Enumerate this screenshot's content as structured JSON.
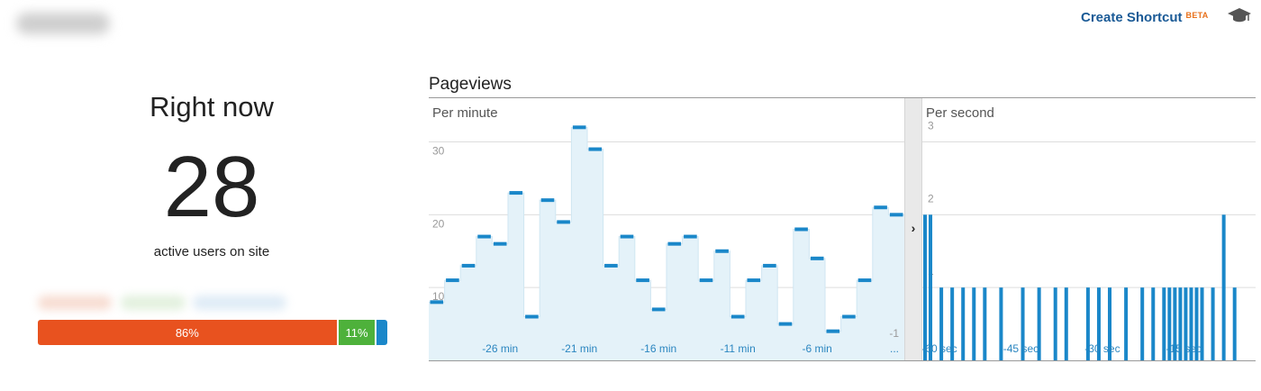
{
  "header": {
    "shortcut_label": "Create Shortcut",
    "beta_label": "BETA",
    "cap_icon": "graduation-cap-icon"
  },
  "right_now": {
    "title": "Right now",
    "count": "28",
    "subtitle": "active users on site"
  },
  "device_bar": {
    "segments": [
      {
        "label": "86%",
        "value": 86,
        "color": "#e8521f"
      },
      {
        "label": "11%",
        "value": 11,
        "color": "#4eb13b"
      },
      {
        "label": "",
        "value": 3,
        "color": "#1a87c9"
      }
    ]
  },
  "pageviews": {
    "title": "Pageviews",
    "divider_icon": "chevron-right-icon"
  },
  "chart_data": [
    {
      "type": "area",
      "title": "Per minute",
      "ylim": [
        0,
        36
      ],
      "y_ticks": [
        "10",
        "20",
        "30"
      ],
      "grid": true,
      "x_tick_labels": [
        "-26 min",
        "-21 min",
        "-16 min",
        "-11 min",
        "-6 min",
        "-1"
      ],
      "x_last_label": "...",
      "minutes_ago": [
        30,
        29,
        28,
        27,
        26,
        25,
        24,
        23,
        22,
        21,
        20,
        19,
        18,
        17,
        16,
        15,
        14,
        13,
        12,
        11,
        10,
        9,
        8,
        7,
        6,
        5,
        4,
        3,
        2,
        1
      ],
      "values": [
        8,
        11,
        13,
        17,
        16,
        23,
        6,
        22,
        19,
        32,
        29,
        13,
        17,
        11,
        7,
        16,
        17,
        11,
        15,
        6,
        11,
        13,
        5,
        18,
        14,
        4,
        6,
        11,
        21,
        20
      ],
      "color": "#1a87c9",
      "fill": "#e4f2f9"
    },
    {
      "type": "bar",
      "title": "Per second",
      "ylim": [
        0,
        3.6
      ],
      "y_ticks": [
        "1",
        "2",
        "3"
      ],
      "grid": true,
      "x_tick_labels": [
        "-60 sec",
        "-45 sec",
        "-30 sec",
        "-15 sec"
      ],
      "seconds_ago": [
        60,
        59,
        57,
        55,
        53,
        51,
        49,
        46,
        42,
        39,
        36,
        34,
        30,
        28,
        26,
        23,
        20,
        18,
        16,
        15,
        14,
        13,
        12,
        11,
        10,
        9,
        7,
        5,
        3
      ],
      "values": [
        2,
        2,
        1,
        1,
        1,
        1,
        1,
        1,
        1,
        1,
        1,
        1,
        1,
        1,
        1,
        1,
        1,
        1,
        1,
        1,
        1,
        1,
        1,
        1,
        1,
        1,
        1,
        2,
        1
      ],
      "color": "#1a87c9"
    }
  ]
}
